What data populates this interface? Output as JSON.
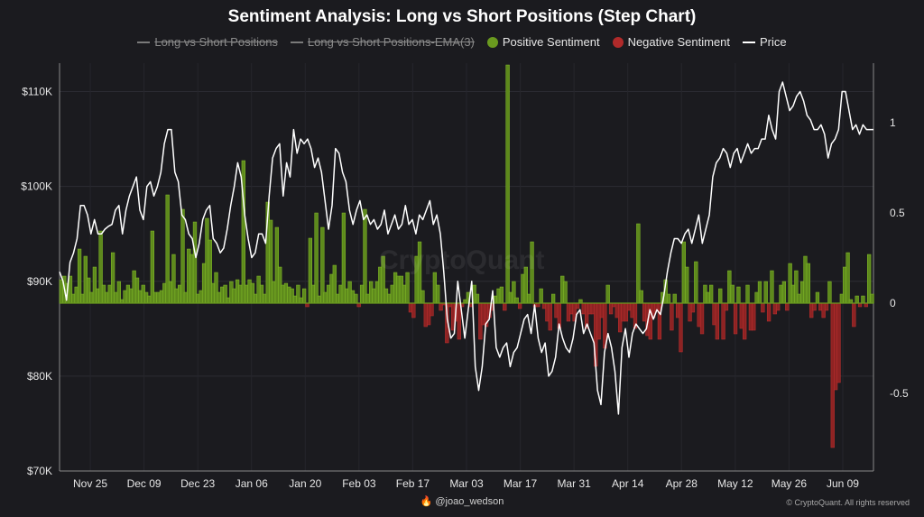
{
  "chart_data": {
    "type": "bar",
    "title": "Sentiment Analysis: Long vs Short Positions (Step Chart)",
    "legend": [
      {
        "name": "Long vs Short Positions",
        "color": "#8a8a8a",
        "hidden": true,
        "marker": "line"
      },
      {
        "name": "Long vs Short Positions-EMA(3)",
        "color": "#8a8a8a",
        "hidden": true,
        "marker": "line"
      },
      {
        "name": "Positive Sentiment",
        "color": "#6a9a1f",
        "hidden": false,
        "marker": "dot"
      },
      {
        "name": "Negative Sentiment",
        "color": "#b02a2a",
        "hidden": false,
        "marker": "dot"
      },
      {
        "name": "Price",
        "color": "#ffffff",
        "hidden": false,
        "marker": "line"
      }
    ],
    "x_start": "2024-11-17",
    "x_end": "2025-06-17",
    "x_ticks": [
      "Nov 25",
      "Dec 09",
      "Dec 23",
      "Jan 06",
      "Jan 20",
      "Feb 03",
      "Feb 17",
      "Mar 03",
      "Mar 17",
      "Mar 31",
      "Apr 14",
      "Apr 28",
      "May 12",
      "May 26",
      "Jun 09"
    ],
    "y_left": {
      "ticks": [
        "$70K",
        "$80K",
        "$90K",
        "$100K",
        "$110K"
      ],
      "values": [
        70000,
        80000,
        90000,
        100000,
        110000
      ],
      "lim": [
        70000,
        113000
      ]
    },
    "y_right": {
      "ticks": [
        "1",
        "0.5",
        "0",
        "-0.5"
      ],
      "values": [
        1,
        0.5,
        0,
        -0.5
      ],
      "lim": [
        -0.93,
        1.33
      ]
    },
    "grid": true,
    "sentiment": [
      0.13,
      0.15,
      0.11,
      0.15,
      0.05,
      0.09,
      0.3,
      0.05,
      0.26,
      0.14,
      0.06,
      0.2,
      0.08,
      0.4,
      0.1,
      0.06,
      0.1,
      0.28,
      0.06,
      0.12,
      0.02,
      0.07,
      0.1,
      0.08,
      0.18,
      0.14,
      0.07,
      0.1,
      0.06,
      0.04,
      0.4,
      0.06,
      0.06,
      0.07,
      0.11,
      0.6,
      0.12,
      0.27,
      0.08,
      0.1,
      0.52,
      0.06,
      0.3,
      0.27,
      0.45,
      0.05,
      0.07,
      0.22,
      0.47,
      0.35,
      0.11,
      0.17,
      0.06,
      0.09,
      0.1,
      0.03,
      0.12,
      0.08,
      0.13,
      0.1,
      0.79,
      0.1,
      0.13,
      0.11,
      0.05,
      0.15,
      0.1,
      0.05,
      0.56,
      0.46,
      0.12,
      0.42,
      0.2,
      0.1,
      0.11,
      0.09,
      0.08,
      0.04,
      0.1,
      0.03,
      0.08,
      -0.02,
      0.36,
      0.1,
      0.5,
      0.04,
      0.42,
      0.06,
      0.1,
      0.16,
      0.21,
      0.05,
      0.1,
      0.5,
      0.08,
      0.12,
      0.07,
      0.05,
      -0.02,
      0.1,
      0.52,
      0.05,
      0.12,
      0.08,
      0.12,
      0.2,
      0.26,
      0.08,
      0.05,
      0.1,
      0.17,
      0.15,
      0.15,
      0.1,
      0.17,
      -0.05,
      -0.08,
      0.26,
      0.34,
      0.07,
      -0.13,
      -0.12,
      -0.07,
      0.17,
      0.1,
      -0.04,
      -0.01,
      -0.22,
      -0.02,
      -0.15,
      -0.1,
      -0.2,
      -0.02,
      0.02,
      0.06,
      -0.02,
      0.1,
      0.05,
      -0.2,
      -0.12,
      -0.13,
      -0.08,
      -0.04,
      0.04,
      0.08,
      0.09,
      -0.04,
      1.32,
      0.06,
      0.12,
      0.03,
      -0.03,
      0.16,
      0.2,
      0.05,
      0.34,
      -0.02,
      -0.02,
      0.08,
      -0.03,
      -0.1,
      -0.15,
      0.05,
      -0.08,
      -0.14,
      0.15,
      0.12,
      -0.1,
      -0.06,
      -0.1,
      -0.03,
      0.02,
      -0.06,
      -0.14,
      -0.06,
      -0.06,
      -0.35,
      -0.2,
      -0.08,
      -0.25,
      0.1,
      -0.06,
      -0.02,
      -0.08,
      -0.16,
      -0.1,
      -0.1,
      -0.04,
      -0.08,
      -0.14,
      0.44,
      0.07,
      -0.1,
      -0.18,
      -0.2,
      -0.08,
      -0.04,
      -0.2,
      0.06,
      0.13,
      0.05,
      -0.15,
      0.05,
      -0.08,
      -0.27,
      0.34,
      0.2,
      -0.1,
      -0.05,
      0.23,
      -0.13,
      -0.17,
      0.1,
      0.06,
      0.1,
      -0.12,
      -0.2,
      0.08,
      -0.2,
      -0.04,
      0.18,
      0.1,
      -0.17,
      0.09,
      -0.14,
      -0.2,
      0.1,
      -0.15,
      -0.15,
      0.06,
      0.12,
      -0.05,
      0.12,
      -0.1,
      0.18,
      -0.06,
      -0.04,
      0.1,
      0.12,
      -0.04,
      0.22,
      0.1,
      0.18,
      0.05,
      0.12,
      0.26,
      0.22,
      -0.08,
      -0.04,
      0.06,
      -0.04,
      -0.08,
      -0.04,
      0.12,
      -0.8,
      -0.48,
      -0.44,
      0.05,
      0.2,
      0.28,
      0.02,
      -0.13,
      0.04,
      -0.02,
      0.04,
      -0.02,
      0.27,
      0.05
    ],
    "price": [
      91000,
      90000,
      88000,
      92000,
      93000,
      94500,
      98000,
      98000,
      97000,
      95000,
      96500,
      95000,
      95000,
      95500,
      95800,
      96000,
      97500,
      98000,
      95000,
      97500,
      99000,
      100000,
      101000,
      97500,
      96500,
      100000,
      100500,
      99000,
      100000,
      101500,
      104500,
      106000,
      106000,
      101500,
      100500,
      97000,
      96500,
      95000,
      94500,
      92500,
      94000,
      96500,
      97500,
      98000,
      94500,
      94000,
      93000,
      93500,
      95500,
      98000,
      100000,
      102500,
      101000,
      97000,
      94500,
      92500,
      93000,
      95000,
      95000,
      94000,
      99000,
      103000,
      104000,
      104500,
      99000,
      102500,
      101000,
      106000,
      103500,
      105000,
      104500,
      105000,
      104000,
      102000,
      103000,
      101500,
      98500,
      95500,
      98000,
      104000,
      103500,
      101500,
      100500,
      97500,
      96000,
      97500,
      98500,
      96500,
      97000,
      96000,
      96500,
      95500,
      96000,
      97500,
      95000,
      96000,
      97000,
      95500,
      96000,
      98000,
      96000,
      96500,
      95000,
      97000,
      96500,
      97500,
      98500,
      96000,
      97000,
      95000,
      91000,
      86000,
      84000,
      84500,
      90000,
      87000,
      84000,
      87000,
      90000,
      81000,
      78500,
      81000,
      85500,
      86000,
      89000,
      83000,
      82000,
      83000,
      83500,
      81000,
      82500,
      83000,
      84500,
      86000,
      86500,
      84500,
      87500,
      84000,
      82500,
      83500,
      80000,
      80500,
      82000,
      85500,
      84000,
      83000,
      82500,
      84000,
      86500,
      87000,
      84500,
      85500,
      84500,
      83500,
      78500,
      77000,
      82500,
      84500,
      83000,
      80500,
      76000,
      83000,
      85000,
      82000,
      84500,
      85500,
      85000,
      84500,
      85000,
      87000,
      86000,
      87000,
      86500,
      88500,
      91000,
      93000,
      94500,
      94500,
      94000,
      95000,
      95500,
      94000,
      95500,
      97000,
      94000,
      95500,
      97000,
      101000,
      102500,
      103000,
      104000,
      103500,
      102000,
      103500,
      104000,
      102500,
      103500,
      104500,
      103500,
      104000,
      104000,
      105000,
      105000,
      107500,
      106000,
      105000,
      110000,
      111000,
      109500,
      108000,
      108500,
      109500,
      110000,
      109000,
      107500,
      107000,
      106000,
      106000,
      106500,
      105500,
      103000,
      104500,
      105000,
      106000,
      110000,
      110000,
      108000,
      106000,
      106500,
      105500,
      106500,
      106000,
      106000,
      106000
    ],
    "watermark": "CryptoQuant",
    "footer_user": "🔥 @joao_wedson",
    "footer_copy": "© CryptoQuant. All rights reserved"
  }
}
